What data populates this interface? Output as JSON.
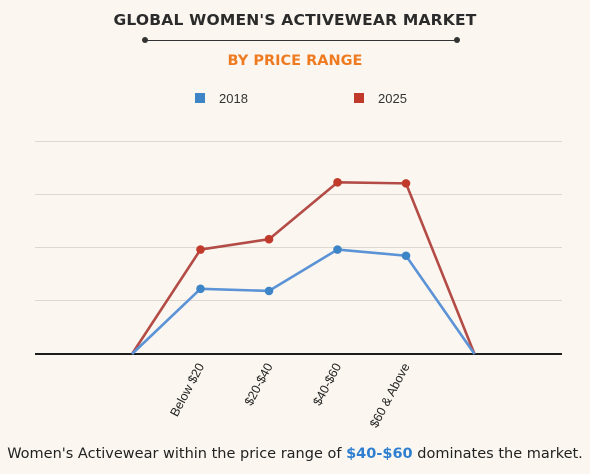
{
  "title": "GLOBAL WOMEN'S ACTIVEWEAR MARKET",
  "subtitle": "BY PRICE RANGE",
  "colors": {
    "s2018": "#3d85c6",
    "s2025": "#c0392b",
    "line2018": "#5b93d6",
    "line2025": "#b34b46",
    "accent": "#ee7b22"
  },
  "chart_data": {
    "type": "line",
    "categories": [
      "Below $20",
      "$20-$40",
      "$40-$60",
      "$60 & Above"
    ],
    "series": [
      {
        "name": "2018",
        "values": [
          0.63,
          0.61,
          1.01,
          0.95
        ]
      },
      {
        "name": "2025",
        "values": [
          1.01,
          1.11,
          1.66,
          1.65
        ]
      }
    ],
    "xlabel": "",
    "ylabel": "",
    "ylim": [
      0,
      2.05
    ],
    "grid": true,
    "legend": "top-center"
  },
  "footer": {
    "before": "Women's Activewear within the price range of ",
    "highlight": "$40-$60",
    "after": " dominates the market."
  }
}
